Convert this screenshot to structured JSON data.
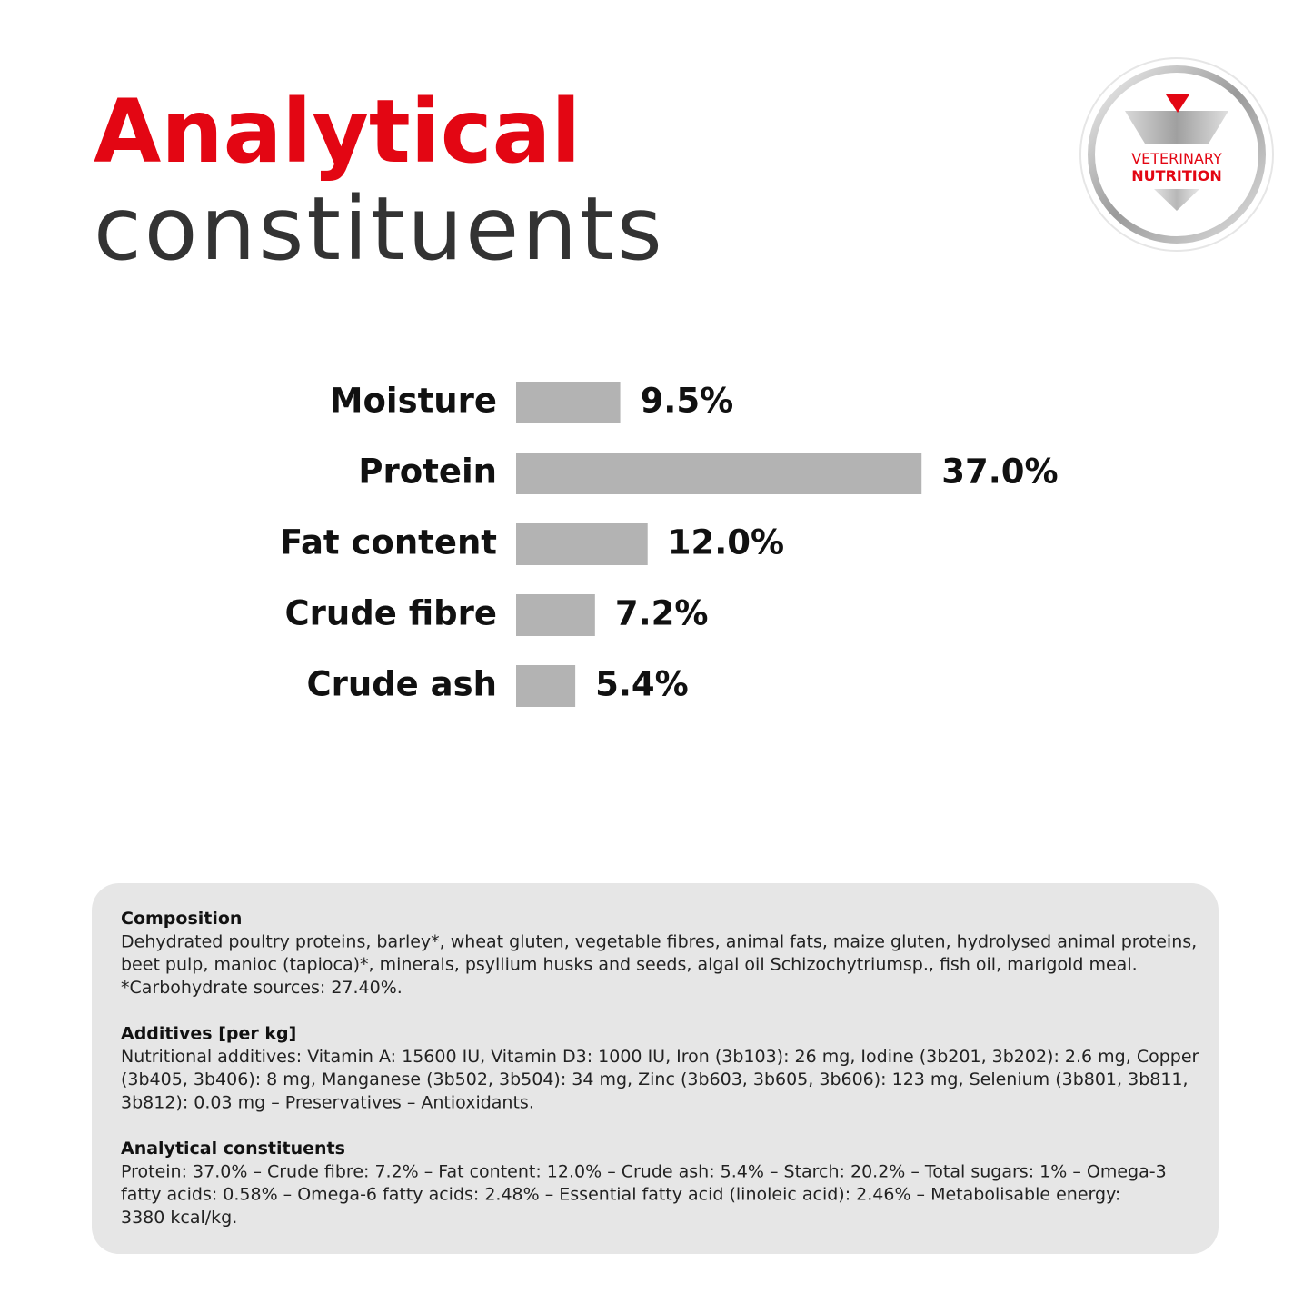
{
  "header": {
    "title_line1": "Analytical",
    "title_line2": "constituents"
  },
  "badge": {
    "line1": "VETERINARY",
    "line2": "NUTRITION"
  },
  "chart_data": {
    "type": "bar",
    "orientation": "horizontal",
    "categories": [
      "Moisture",
      "Protein",
      "Fat content",
      "Crude fibre",
      "Crude ash"
    ],
    "values": [
      9.5,
      37.0,
      12.0,
      7.2,
      5.4
    ],
    "value_labels": [
      "9.5%",
      "37.0%",
      "12.0%",
      "7.2%",
      "5.4%"
    ],
    "color": "#b3b3b3"
  },
  "panel": {
    "sections": [
      {
        "heading": "Composition",
        "lines": [
          "Dehydrated poultry proteins, barley*, wheat gluten, vegetable fibres, animal fats, maize gluten, hydrolysed animal proteins,",
          "beet pulp, manioc (tapioca)*, minerals, psyllium husks and seeds, algal oil Schizochytriumsp., fish oil, marigold meal.",
          "*Carbohydrate sources: 27.40%."
        ]
      },
      {
        "heading": "Additives [per kg]",
        "lines": [
          "Nutritional additives: Vitamin A: 15600 IU, Vitamin D3: 1000 IU, Iron (3b103): 26 mg, Iodine (3b201, 3b202): 2.6 mg, Copper",
          "(3b405, 3b406): 8 mg, Manganese (3b502, 3b504): 34 mg, Zinc (3b603, 3b605, 3b606): 123 mg, Selenium (3b801, 3b811,",
          "3b812): 0.03 mg – Preservatives – Antioxidants."
        ]
      },
      {
        "heading": "Analytical constituents",
        "lines": [
          "Protein: 37.0% – Crude fibre: 7.2% – Fat content: 12.0% – Crude ash: 5.4% – Starch: 20.2% – Total sugars: 1% – Omega-3",
          "fatty acids: 0.58% – Omega-6 fatty acids: 2.48% – Essential fatty acid (linoleic acid): 2.46% – Metabolisable energy:",
          "3380 kcal/kg."
        ]
      }
    ]
  }
}
